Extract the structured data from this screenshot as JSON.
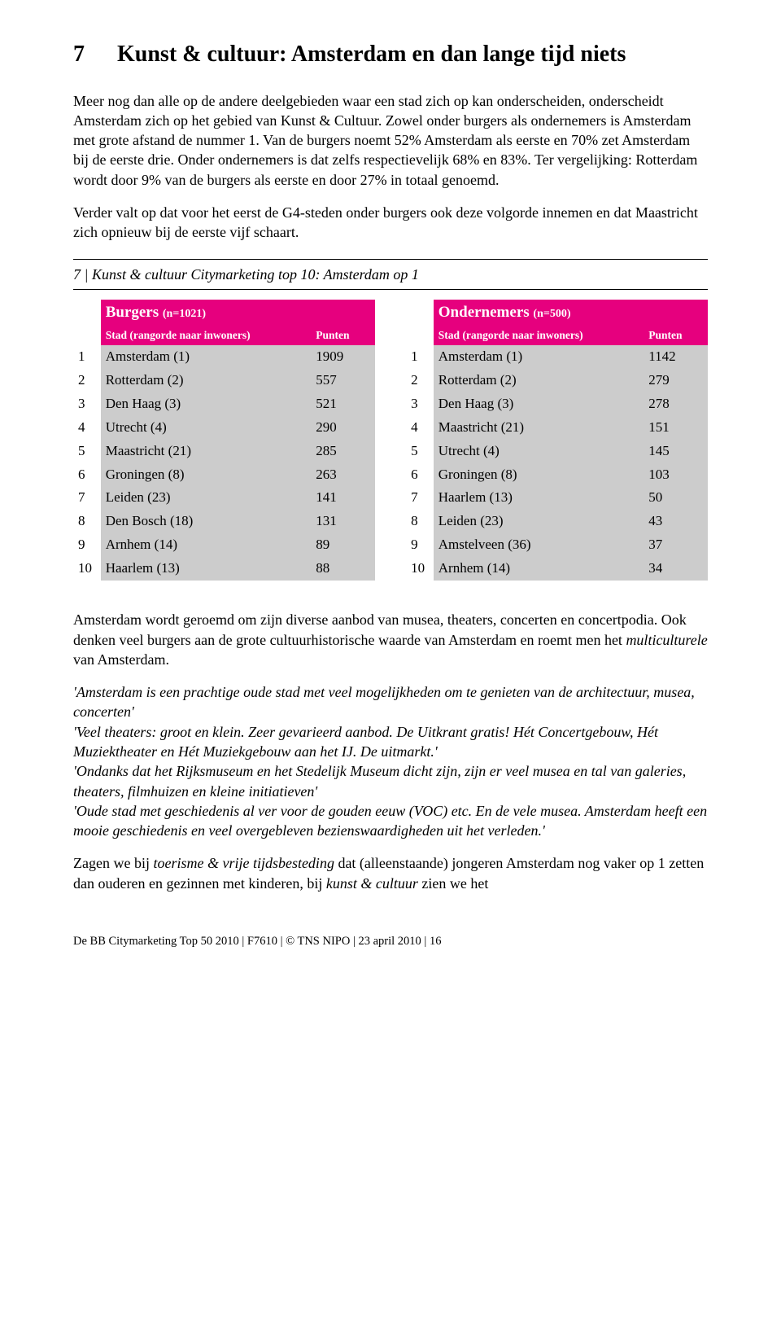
{
  "colors": {
    "pink": "#e6007e",
    "row_bg": "#cccccc",
    "row_alt_bg": "#cccccc",
    "white": "#ffffff",
    "black": "#000000"
  },
  "heading": {
    "number": "7",
    "title": "Kunst & cultuur: Amsterdam en dan lange tijd niets"
  },
  "paragraphs": {
    "p1": "Meer nog dan alle op de andere deelgebieden waar een stad zich op kan onderscheiden, onderscheidt Amsterdam zich op het gebied van Kunst & Cultuur. Zowel onder burgers als ondernemers is Amsterdam met grote afstand de nummer 1. Van de burgers noemt 52% Amsterdam als eerste en 70% zet Amsterdam bij de eerste drie. Onder ondernemers is dat zelfs respectievelijk 68% en 83%. Ter vergelijking: Rotterdam wordt door 9% van de burgers als eerste en door 27% in totaal genoemd.",
    "p2": "Verder valt op dat voor het eerst de G4-steden onder burgers ook deze volgorde innemen en dat Maastricht zich opnieuw bij de eerste vijf schaart.",
    "p3_a": "Amsterdam wordt geroemd om zijn diverse aanbod van musea, theaters, concerten en concertpodia. Ook denken veel burgers aan de grote cultuurhistorische waarde van Amsterdam en roemt men het ",
    "p3_b": "multiculturele",
    "p3_c": " van Amsterdam.",
    "p4_a": "Zagen we bij ",
    "p4_b": "toerisme & vrije tijdsbesteding",
    "p4_c": " dat (alleenstaande) jongeren Amsterdam nog vaker op 1 zetten dan ouderen en gezinnen met kinderen, bij ",
    "p4_d": "kunst & cultuur",
    "p4_e": " zien we het"
  },
  "quotes": {
    "q1": "'Amsterdam is een prachtige oude stad met veel mogelijkheden om te genieten van de architectuur, musea, concerten'",
    "q2": "'Veel theaters: groot en klein. Zeer gevarieerd aanbod. De Uitkrant gratis! Hét Concertgebouw, Hét Muziektheater en Hét Muziekgebouw aan het IJ. De uitmarkt.'",
    "q3": "'Ondanks dat het Rijksmuseum en het Stedelijk Museum dicht zijn, zijn er veel musea en tal van galeries, theaters, filmhuizen en kleine initiatieven'",
    "q4": "'Oude stad met geschiedenis al ver voor de gouden eeuw (VOC) etc. En de vele musea. Amsterdam heeft een mooie geschiedenis en veel overgebleven bezienswaardigheden uit het verleden.'"
  },
  "table": {
    "caption": "7 | Kunst & cultuur Citymarketing top 10: Amsterdam op 1",
    "left_header": "Burgers",
    "left_header_n": "(n=1021)",
    "right_header": "Ondernemers",
    "right_header_n": "(n=500)",
    "sub_city": "Stad (rangorde naar inwoners)",
    "sub_points": "Punten",
    "left_rows": [
      {
        "rank": "1",
        "city": "Amsterdam (1)",
        "pts": "1909"
      },
      {
        "rank": "2",
        "city": "Rotterdam (2)",
        "pts": "557"
      },
      {
        "rank": "3",
        "city": "Den Haag (3)",
        "pts": "521"
      },
      {
        "rank": "4",
        "city": "Utrecht (4)",
        "pts": "290"
      },
      {
        "rank": "5",
        "city": "Maastricht (21)",
        "pts": "285"
      },
      {
        "rank": "6",
        "city": "Groningen (8)",
        "pts": "263"
      },
      {
        "rank": "7",
        "city": "Leiden (23)",
        "pts": "141"
      },
      {
        "rank": "8",
        "city": "Den Bosch (18)",
        "pts": "131"
      },
      {
        "rank": "9",
        "city": "Arnhem (14)",
        "pts": "89"
      },
      {
        "rank": "10",
        "city": "Haarlem (13)",
        "pts": "88"
      }
    ],
    "right_rows": [
      {
        "rank": "1",
        "city": "Amsterdam (1)",
        "pts": "1142"
      },
      {
        "rank": "2",
        "city": "Rotterdam (2)",
        "pts": "279"
      },
      {
        "rank": "3",
        "city": "Den Haag (3)",
        "pts": "278"
      },
      {
        "rank": "4",
        "city": "Maastricht (21)",
        "pts": "151"
      },
      {
        "rank": "5",
        "city": "Utrecht (4)",
        "pts": "145"
      },
      {
        "rank": "6",
        "city": "Groningen (8)",
        "pts": "103"
      },
      {
        "rank": "7",
        "city": "Haarlem (13)",
        "pts": "50"
      },
      {
        "rank": "8",
        "city": "Leiden (23)",
        "pts": "43"
      },
      {
        "rank": "9",
        "city": "Amstelveen (36)",
        "pts": "37"
      },
      {
        "rank": "10",
        "city": "Arnhem (14)",
        "pts": "34"
      }
    ]
  },
  "footer": "De BB Citymarketing Top 50 2010 | F7610 | © TNS NIPO | 23 april 2010 | 16"
}
